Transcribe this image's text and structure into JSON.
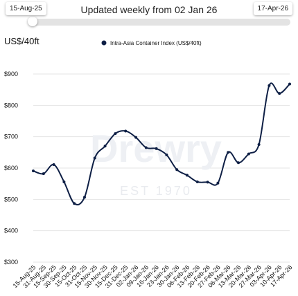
{
  "header": {
    "start_date": "15-Aug-25",
    "end_date": "17-Apr-26",
    "updated_text": "Updated weekly from 02 Jan 26"
  },
  "watermark": {
    "brand": "Drewry",
    "tagline": "EST 1970"
  },
  "colors": {
    "series": "#0e1f45",
    "grid": "#e4e4e4",
    "track": "#e3e3e3"
  },
  "chart_data": {
    "type": "line",
    "ylabel": "US$/40ft",
    "ylim": [
      300,
      900
    ],
    "yticks": [
      "$300",
      "$400",
      "$500",
      "$600",
      "$700",
      "$800",
      "$900"
    ],
    "ytick_values": [
      300,
      400,
      500,
      600,
      700,
      800,
      900
    ],
    "grid": true,
    "legend_position": "top",
    "categories": [
      "15-Aug-25",
      "31-Aug-25",
      "15-Sep-25",
      "30-Sep-25",
      "15-Oct-25",
      "31-Oct-25",
      "15-Nov-25",
      "30-Nov-25",
      "15-Dec-25",
      "31-Dec-25",
      "02-Jan-26",
      "09-Jan-26",
      "16-Jan-26",
      "23-Jan-26",
      "30-Jan-26",
      "06-Feb-26",
      "13-Feb-26",
      "20-Feb-26",
      "27-Feb-26",
      "06-Mar-26",
      "13-Mar-26",
      "20-Mar-26",
      "27-Mar-26",
      "03-Apr-26",
      "10-Apr-26",
      "17-Apr-26"
    ],
    "series": [
      {
        "name": "Intra-Asia Container Index (US$/40ft)",
        "values": [
          591,
          582,
          611,
          556,
          487,
          507,
          632,
          670,
          710,
          718,
          698,
          665,
          662,
          642,
          595,
          577,
          556,
          555,
          552,
          650,
          617,
          645,
          675,
          863,
          838,
          868
        ]
      }
    ]
  }
}
